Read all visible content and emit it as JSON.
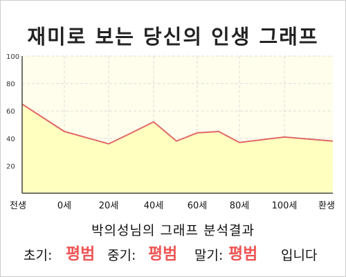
{
  "title": "재미로 보는 당신의 인생 그래프",
  "subtitle": "박의성님의 그래프 분석결과",
  "result": {
    "early_label": "초기:",
    "early_value": "평범",
    "mid_label": "중기:",
    "mid_value": "평범",
    "late_label": "말기:",
    "late_value": "평범",
    "ending": "입니다"
  },
  "colors": {
    "plot_bg": "#fffdeb",
    "area_fill": "#ffffbb",
    "line": "#e06666",
    "grid": "#dddddd",
    "accent": "#ee5555"
  },
  "chart_data": {
    "type": "area",
    "title": "재미로 보는 당신의 인생 그래프",
    "xlabel": "",
    "ylabel": "",
    "ylim": [
      0,
      100
    ],
    "yticks": [
      "100",
      "80",
      "60",
      "40",
      "20"
    ],
    "x_tick_labels": [
      "전생",
      "0세",
      "20세",
      "40세",
      "60세",
      "80세",
      "100세",
      "환생"
    ],
    "points": [
      {
        "x": "전생",
        "y": 65
      },
      {
        "x": "0세",
        "y": 45
      },
      {
        "x": "20세",
        "y": 36
      },
      {
        "x": "30세",
        "y": 44
      },
      {
        "x": "40세",
        "y": 52
      },
      {
        "x": "50세",
        "y": 38
      },
      {
        "x": "60세",
        "y": 44
      },
      {
        "x": "70세",
        "y": 45
      },
      {
        "x": "80세",
        "y": 37
      },
      {
        "x": "100세",
        "y": 41
      },
      {
        "x": "환생",
        "y": 38
      }
    ],
    "grid": true,
    "legend": "none"
  }
}
